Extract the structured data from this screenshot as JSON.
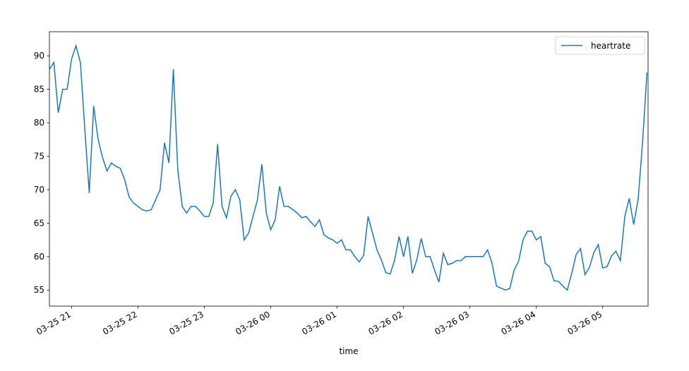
{
  "chart_data": {
    "type": "line",
    "x_label": "time",
    "x": [
      "03-25 20:40",
      "03-25 20:44",
      "03-25 20:48",
      "03-25 20:52",
      "03-25 20:56",
      "03-25 21:00",
      "03-25 21:04",
      "03-25 21:08",
      "03-25 21:12",
      "03-25 21:16",
      "03-25 21:20",
      "03-25 21:24",
      "03-25 21:28",
      "03-25 21:32",
      "03-25 21:36",
      "03-25 21:40",
      "03-25 21:44",
      "03-25 21:48",
      "03-25 21:52",
      "03-25 21:56",
      "03-25 22:00",
      "03-25 22:04",
      "03-25 22:08",
      "03-25 22:12",
      "03-25 22:16",
      "03-25 22:20",
      "03-25 22:24",
      "03-25 22:28",
      "03-25 22:32",
      "03-25 22:36",
      "03-25 22:40",
      "03-25 22:44",
      "03-25 22:48",
      "03-25 22:52",
      "03-25 22:56",
      "03-25 23:00",
      "03-25 23:04",
      "03-25 23:08",
      "03-25 23:12",
      "03-25 23:16",
      "03-25 23:20",
      "03-25 23:24",
      "03-25 23:28",
      "03-25 23:32",
      "03-25 23:36",
      "03-25 23:40",
      "03-25 23:44",
      "03-25 23:48",
      "03-25 23:52",
      "03-25 23:56",
      "03-26 00:00",
      "03-26 00:04",
      "03-26 00:08",
      "03-26 00:12",
      "03-26 00:16",
      "03-26 00:20",
      "03-26 00:24",
      "03-26 00:28",
      "03-26 00:32",
      "03-26 00:36",
      "03-26 00:40",
      "03-26 00:44",
      "03-26 00:48",
      "03-26 00:52",
      "03-26 00:56",
      "03-26 01:00",
      "03-26 01:04",
      "03-26 01:08",
      "03-26 01:12",
      "03-26 01:16",
      "03-26 01:20",
      "03-26 01:24",
      "03-26 01:28",
      "03-26 01:32",
      "03-26 01:36",
      "03-26 01:40",
      "03-26 01:44",
      "03-26 01:48",
      "03-26 01:52",
      "03-26 01:56",
      "03-26 02:00",
      "03-26 02:04",
      "03-26 02:08",
      "03-26 02:12",
      "03-26 02:16",
      "03-26 02:20",
      "03-26 02:24",
      "03-26 02:28",
      "03-26 02:32",
      "03-26 02:36",
      "03-26 02:40",
      "03-26 02:44",
      "03-26 02:48",
      "03-26 02:52",
      "03-26 02:56",
      "03-26 03:00",
      "03-26 03:04",
      "03-26 03:08",
      "03-26 03:12",
      "03-26 03:16",
      "03-26 03:20",
      "03-26 03:24",
      "03-26 03:28",
      "03-26 03:32",
      "03-26 03:36",
      "03-26 03:40",
      "03-26 03:44",
      "03-26 03:48",
      "03-26 03:52",
      "03-26 03:56",
      "03-26 04:00",
      "03-26 04:04",
      "03-26 04:08",
      "03-26 04:12",
      "03-26 04:16",
      "03-26 04:20",
      "03-26 04:24",
      "03-26 04:28",
      "03-26 04:32",
      "03-26 04:36",
      "03-26 04:40",
      "03-26 04:44",
      "03-26 04:48",
      "03-26 04:52",
      "03-26 04:56",
      "03-26 05:00",
      "03-26 05:04",
      "03-26 05:08",
      "03-26 05:12",
      "03-26 05:16",
      "03-26 05:20",
      "03-26 05:24",
      "03-26 05:28",
      "03-26 05:32",
      "03-26 05:36",
      "03-26 05:40"
    ],
    "series": [
      {
        "name": "heartrate",
        "color": "#1f77b4",
        "values": [
          88,
          89,
          81.5,
          85,
          85,
          89.5,
          91.5,
          89,
          79,
          69.5,
          82.5,
          77.5,
          74.8,
          72.8,
          74,
          73.5,
          73.2,
          71.5,
          68.9,
          68,
          67.5,
          67,
          66.8,
          67,
          68.5,
          70,
          77,
          74,
          88,
          73,
          67.5,
          66.5,
          67.5,
          67.5,
          66.8,
          66,
          66,
          68,
          76.8,
          67.5,
          65.8,
          69,
          70,
          68.5,
          62.5,
          63.5,
          66,
          68.5,
          73.8,
          66.5,
          64,
          65.5,
          70.5,
          67.5,
          67.5,
          67,
          66.5,
          65.8,
          66,
          65.2,
          64.5,
          65.5,
          63.3,
          62.8,
          62.5,
          62,
          62.5,
          61,
          61,
          60,
          59.2,
          60.2,
          66,
          63.5,
          61,
          59.5,
          57.6,
          57.4,
          59.5,
          63,
          60,
          63,
          57.5,
          59.5,
          62.7,
          60,
          60,
          58,
          56.2,
          60.5,
          58.8,
          59,
          59.4,
          59.4,
          60,
          60,
          60,
          60,
          60,
          61,
          59,
          55.6,
          55.3,
          55,
          55.2,
          58,
          59.3,
          62.5,
          63.8,
          63.8,
          62.5,
          63,
          59,
          58.5,
          56.4,
          56.3,
          55.6,
          55,
          57.5,
          60.3,
          61.2,
          57.3,
          58.4,
          60.6,
          61.8,
          58.3,
          58.5,
          60.1,
          60.8,
          59.4,
          66,
          68.7,
          64.8,
          68.5,
          77,
          87.5
        ]
      }
    ],
    "xlim": [
      "03-25 20:40",
      "03-26 05:41"
    ],
    "xticks": [
      {
        "value": "03-25 21:00",
        "label": "03-25 21"
      },
      {
        "value": "03-25 22:00",
        "label": "03-25 22"
      },
      {
        "value": "03-25 23:00",
        "label": "03-25 23"
      },
      {
        "value": "03-26 00:00",
        "label": "03-26 00"
      },
      {
        "value": "03-26 01:00",
        "label": "03-26 01"
      },
      {
        "value": "03-26 02:00",
        "label": "03-26 02"
      },
      {
        "value": "03-26 03:00",
        "label": "03-26 03"
      },
      {
        "value": "03-26 04:00",
        "label": "03-26 04"
      },
      {
        "value": "03-26 05:00",
        "label": "03-26 05"
      }
    ],
    "ylim": [
      52.6,
      93.6
    ],
    "yticks": [
      55,
      60,
      65,
      70,
      75,
      80,
      85,
      90
    ],
    "grid": false,
    "legend": "upper right"
  }
}
